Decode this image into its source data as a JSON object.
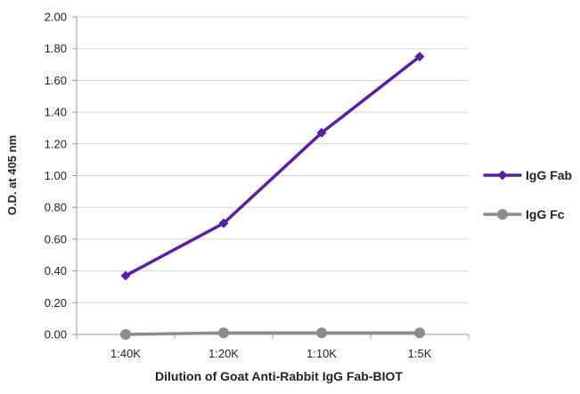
{
  "chart_data": {
    "type": "line",
    "title": "",
    "xlabel": "Dilution of Goat Anti-Rabbit IgG Fab-BIOT",
    "ylabel": "O.D. at 405 nm",
    "categories": [
      "1:40K",
      "1:20K",
      "1:10K",
      "1:5K"
    ],
    "ylim": [
      0,
      2.0
    ],
    "yticks": [
      "0.00",
      "0.20",
      "0.40",
      "0.60",
      "0.80",
      "1.00",
      "1.20",
      "1.40",
      "1.60",
      "1.80",
      "2.00"
    ],
    "grid": true,
    "legend_position": "right",
    "series": [
      {
        "name": "IgG Fab",
        "values": [
          0.37,
          0.7,
          1.27,
          1.75
        ],
        "color": "#5b1fa5",
        "marker": "diamond"
      },
      {
        "name": "IgG Fc",
        "values": [
          0.0,
          0.01,
          0.01,
          0.01
        ],
        "color": "#8c8c8c",
        "marker": "circle"
      }
    ]
  }
}
